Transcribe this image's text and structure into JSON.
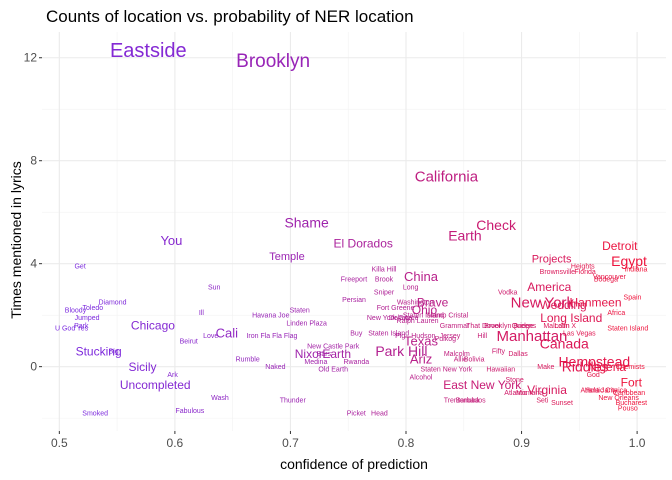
{
  "chart_data": {
    "type": "scatter",
    "title": "Counts of location vs. probability of NER location",
    "xlabel": "confidence of prediction",
    "ylabel": "Times mentioned in lyrics",
    "xlim": [
      0.485,
      1.025
    ],
    "ylim": [
      -2.5,
      13.0
    ],
    "x_ticks": [
      "0.5",
      "0.6",
      "0.7",
      "0.8",
      "0.9",
      "1.0"
    ],
    "y_ticks": [
      "0",
      "4",
      "8",
      "12"
    ],
    "grid": true,
    "legend": "none",
    "color_low": "#7b2be0",
    "color_high": "#f0143a",
    "points": [
      {
        "label": "Eastside",
        "x": 0.577,
        "y": 12.3,
        "size": 20
      },
      {
        "label": "Brooklyn",
        "x": 0.685,
        "y": 11.9,
        "size": 19
      },
      {
        "label": "California",
        "x": 0.835,
        "y": 7.4,
        "size": 15
      },
      {
        "label": "Shame",
        "x": 0.714,
        "y": 5.6,
        "size": 14
      },
      {
        "label": "Check",
        "x": 0.878,
        "y": 5.5,
        "size": 14
      },
      {
        "label": "Earth",
        "x": 0.851,
        "y": 5.1,
        "size": 14
      },
      {
        "label": "You",
        "x": 0.597,
        "y": 4.9,
        "size": 13
      },
      {
        "label": "El Dorados",
        "x": 0.763,
        "y": 4.8,
        "size": 12
      },
      {
        "label": "Detroit",
        "x": 0.985,
        "y": 4.7,
        "size": 12
      },
      {
        "label": "Temple",
        "x": 0.697,
        "y": 4.3,
        "size": 11
      },
      {
        "label": "Projects",
        "x": 0.926,
        "y": 4.2,
        "size": 11
      },
      {
        "label": "Egypt",
        "x": 0.993,
        "y": 4.1,
        "size": 14
      },
      {
        "label": "Get",
        "x": 0.518,
        "y": 3.9,
        "size": 7
      },
      {
        "label": "Killa Hill",
        "x": 0.781,
        "y": 3.8,
        "size": 7
      },
      {
        "label": "Heights",
        "x": 0.953,
        "y": 3.9,
        "size": 7
      },
      {
        "label": "Brownsville",
        "x": 0.931,
        "y": 3.7,
        "size": 7
      },
      {
        "label": "Florida",
        "x": 0.955,
        "y": 3.7,
        "size": 7
      },
      {
        "label": "Vancouver",
        "x": 0.976,
        "y": 3.5,
        "size": 7
      },
      {
        "label": "Bodega",
        "x": 0.973,
        "y": 3.4,
        "size": 7
      },
      {
        "label": "Indiana",
        "x": 0.999,
        "y": 3.8,
        "size": 7
      },
      {
        "label": "China",
        "x": 0.813,
        "y": 3.5,
        "size": 13
      },
      {
        "label": "Freeport",
        "x": 0.755,
        "y": 3.4,
        "size": 7
      },
      {
        "label": "Brook",
        "x": 0.781,
        "y": 3.4,
        "size": 7
      },
      {
        "label": "Sun",
        "x": 0.634,
        "y": 3.1,
        "size": 7
      },
      {
        "label": "Long",
        "x": 0.804,
        "y": 3.1,
        "size": 7
      },
      {
        "label": "Sniper",
        "x": 0.781,
        "y": 2.9,
        "size": 7
      },
      {
        "label": "America",
        "x": 0.924,
        "y": 3.1,
        "size": 12
      },
      {
        "label": "Vodka",
        "x": 0.888,
        "y": 2.9,
        "size": 7
      },
      {
        "label": "Diamond",
        "x": 0.546,
        "y": 2.5,
        "size": 7
      },
      {
        "label": "Persian",
        "x": 0.755,
        "y": 2.6,
        "size": 7
      },
      {
        "label": "Brave",
        "x": 0.823,
        "y": 2.5,
        "size": 12
      },
      {
        "label": "Washington",
        "x": 0.808,
        "y": 2.5,
        "size": 7
      },
      {
        "label": "New York",
        "x": 0.918,
        "y": 2.5,
        "size": 15
      },
      {
        "label": "Wedding",
        "x": 0.936,
        "y": 2.4,
        "size": 12
      },
      {
        "label": "Hanmeen",
        "x": 0.964,
        "y": 2.5,
        "size": 12
      },
      {
        "label": "Spain",
        "x": 0.996,
        "y": 2.7,
        "size": 7
      },
      {
        "label": "Toledo",
        "x": 0.529,
        "y": 2.3,
        "size": 7
      },
      {
        "label": "Bloody",
        "x": 0.514,
        "y": 2.2,
        "size": 7
      },
      {
        "label": "Jumped",
        "x": 0.524,
        "y": 1.9,
        "size": 7
      },
      {
        "label": "Ill",
        "x": 0.623,
        "y": 2.1,
        "size": 7
      },
      {
        "label": "Havana Joe",
        "x": 0.683,
        "y": 2.0,
        "size": 7
      },
      {
        "label": "Staten",
        "x": 0.708,
        "y": 2.2,
        "size": 7
      },
      {
        "label": "Fort Greene",
        "x": 0.791,
        "y": 2.3,
        "size": 7
      },
      {
        "label": "Ohio",
        "x": 0.816,
        "y": 2.2,
        "size": 12
      },
      {
        "label": "Staten Island",
        "x": 0.815,
        "y": 2.0,
        "size": 7
      },
      {
        "label": "Mamp Cristal",
        "x": 0.836,
        "y": 2.0,
        "size": 7
      },
      {
        "label": "New York City",
        "x": 0.785,
        "y": 1.9,
        "size": 7
      },
      {
        "label": "Delaware",
        "x": 0.798,
        "y": 1.9,
        "size": 7
      },
      {
        "label": "Ralph Lauren",
        "x": 0.81,
        "y": 1.8,
        "size": 7
      },
      {
        "label": "Long Island",
        "x": 0.943,
        "y": 1.9,
        "size": 12
      },
      {
        "label": "Africa",
        "x": 0.982,
        "y": 2.1,
        "size": 7
      },
      {
        "label": "Linden Plaza",
        "x": 0.714,
        "y": 1.7,
        "size": 7
      },
      {
        "label": "Grammar",
        "x": 0.842,
        "y": 1.6,
        "size": 7
      },
      {
        "label": "That Dover",
        "x": 0.867,
        "y": 1.6,
        "size": 7
      },
      {
        "label": "Brooklyn Bridge",
        "x": 0.889,
        "y": 1.6,
        "size": 7
      },
      {
        "label": "Queens",
        "x": 0.902,
        "y": 1.6,
        "size": 7
      },
      {
        "label": "Malcolm X",
        "x": 0.933,
        "y": 1.6,
        "size": 7
      },
      {
        "label": "Latin",
        "x": 0.935,
        "y": 1.6,
        "size": 7
      },
      {
        "label": "Staten Island",
        "x": 0.992,
        "y": 1.5,
        "size": 7
      },
      {
        "label": "U God",
        "x": 0.505,
        "y": 1.5,
        "size": 7
      },
      {
        "label": "Yes",
        "x": 0.52,
        "y": 1.5,
        "size": 7
      },
      {
        "label": "Chicago",
        "x": 0.581,
        "y": 1.6,
        "size": 12
      },
      {
        "label": "Park",
        "x": 0.519,
        "y": 1.6,
        "size": 7
      },
      {
        "label": "Cali",
        "x": 0.645,
        "y": 1.3,
        "size": 13
      },
      {
        "label": "Love",
        "x": 0.631,
        "y": 1.2,
        "size": 7
      },
      {
        "label": "Buy",
        "x": 0.757,
        "y": 1.3,
        "size": 7
      },
      {
        "label": "Staten Island",
        "x": 0.785,
        "y": 1.3,
        "size": 7
      },
      {
        "label": "Pig",
        "x": 0.795,
        "y": 1.2,
        "size": 7
      },
      {
        "label": "Hudson",
        "x": 0.815,
        "y": 1.2,
        "size": 7
      },
      {
        "label": "Pulkog",
        "x": 0.834,
        "y": 1.1,
        "size": 7
      },
      {
        "label": "Jersey",
        "x": 0.838,
        "y": 1.2,
        "size": 7
      },
      {
        "label": "Hill",
        "x": 0.866,
        "y": 1.2,
        "size": 7
      },
      {
        "label": "Manhattan",
        "x": 0.909,
        "y": 1.2,
        "size": 15
      },
      {
        "label": "Las Vegas",
        "x": 0.95,
        "y": 1.3,
        "size": 7
      },
      {
        "label": "Beirut",
        "x": 0.612,
        "y": 1.0,
        "size": 7
      },
      {
        "label": "Iron Fla Fla Flag",
        "x": 0.684,
        "y": 1.2,
        "size": 7
      },
      {
        "label": "New Castle Park",
        "x": 0.737,
        "y": 0.8,
        "size": 7
      },
      {
        "label": "Texas",
        "x": 0.813,
        "y": 1.0,
        "size": 13
      },
      {
        "label": "Canada",
        "x": 0.937,
        "y": 0.9,
        "size": 14
      },
      {
        "label": "Stucking",
        "x": 0.534,
        "y": 0.6,
        "size": 12
      },
      {
        "label": "Big",
        "x": 0.547,
        "y": 0.6,
        "size": 7
      },
      {
        "label": "Rumble",
        "x": 0.663,
        "y": 0.3,
        "size": 7
      },
      {
        "label": "Nixon",
        "x": 0.717,
        "y": 0.5,
        "size": 12
      },
      {
        "label": "Bars",
        "x": 0.729,
        "y": 0.5,
        "size": 7
      },
      {
        "label": "Earth",
        "x": 0.74,
        "y": 0.5,
        "size": 12
      },
      {
        "label": "Park Hill",
        "x": 0.796,
        "y": 0.6,
        "size": 14
      },
      {
        "label": "Fifty",
        "x": 0.88,
        "y": 0.6,
        "size": 7
      },
      {
        "label": "Dallas",
        "x": 0.897,
        "y": 0.5,
        "size": 7
      },
      {
        "label": "Malcolm",
        "x": 0.844,
        "y": 0.5,
        "size": 7
      },
      {
        "label": "Allie",
        "x": 0.847,
        "y": 0.3,
        "size": 7
      },
      {
        "label": "Bolivia",
        "x": 0.859,
        "y": 0.3,
        "size": 7
      },
      {
        "label": "Medina",
        "x": 0.722,
        "y": 0.2,
        "size": 7
      },
      {
        "label": "Rwanda",
        "x": 0.757,
        "y": 0.2,
        "size": 7
      },
      {
        "label": "Ariz",
        "x": 0.813,
        "y": 0.3,
        "size": 13
      },
      {
        "label": "Sicily",
        "x": 0.572,
        "y": 0.0,
        "size": 12
      },
      {
        "label": "Naked",
        "x": 0.687,
        "y": 0.0,
        "size": 7
      },
      {
        "label": "Old Earth",
        "x": 0.737,
        "y": -0.1,
        "size": 7
      },
      {
        "label": "Staten New York",
        "x": 0.835,
        "y": -0.1,
        "size": 7
      },
      {
        "label": "Hawaiian",
        "x": 0.882,
        "y": -0.1,
        "size": 7
      },
      {
        "label": "Make",
        "x": 0.921,
        "y": 0.0,
        "size": 7
      },
      {
        "label": "Hempstead",
        "x": 0.963,
        "y": 0.2,
        "size": 14
      },
      {
        "label": "Riddles",
        "x": 0.955,
        "y": 0.0,
        "size": 14
      },
      {
        "label": "Nigeria",
        "x": 0.974,
        "y": 0.0,
        "size": 12
      },
      {
        "label": "Chemists",
        "x": 0.994,
        "y": 0.0,
        "size": 7
      },
      {
        "label": "Ark",
        "x": 0.598,
        "y": -0.3,
        "size": 7
      },
      {
        "label": "Alcohol",
        "x": 0.813,
        "y": -0.4,
        "size": 7
      },
      {
        "label": "God",
        "x": 0.962,
        "y": -0.3,
        "size": 7
      },
      {
        "label": "Uncompleted",
        "x": 0.583,
        "y": -0.7,
        "size": 12
      },
      {
        "label": "East New York",
        "x": 0.866,
        "y": -0.7,
        "size": 12
      },
      {
        "label": "Stone",
        "x": 0.894,
        "y": -0.5,
        "size": 7
      },
      {
        "label": "Fort",
        "x": 0.995,
        "y": -0.6,
        "size": 12
      },
      {
        "label": "Virginia",
        "x": 0.922,
        "y": -0.9,
        "size": 12
      },
      {
        "label": "Atlantic",
        "x": 0.895,
        "y": -1.0,
        "size": 7
      },
      {
        "label": "Montana",
        "x": 0.907,
        "y": -1.0,
        "size": 7
      },
      {
        "label": "Atlantic City",
        "x": 0.967,
        "y": -0.9,
        "size": 7
      },
      {
        "label": "Hola",
        "x": 0.961,
        "y": -0.9,
        "size": 7
      },
      {
        "label": "Jamaica",
        "x": 0.98,
        "y": -0.9,
        "size": 7
      },
      {
        "label": "Caribbean",
        "x": 0.993,
        "y": -1.0,
        "size": 7
      },
      {
        "label": "Wash",
        "x": 0.639,
        "y": -1.2,
        "size": 7
      },
      {
        "label": "Thunder",
        "x": 0.702,
        "y": -1.3,
        "size": 7
      },
      {
        "label": "Trentonuba",
        "x": 0.848,
        "y": -1.3,
        "size": 7
      },
      {
        "label": "Barbados",
        "x": 0.856,
        "y": -1.3,
        "size": 7
      },
      {
        "label": "Seti",
        "x": 0.918,
        "y": -1.3,
        "size": 7
      },
      {
        "label": "Sunset",
        "x": 0.935,
        "y": -1.4,
        "size": 7
      },
      {
        "label": "New Orleans",
        "x": 0.984,
        "y": -1.2,
        "size": 7
      },
      {
        "label": "Bucharest",
        "x": 0.995,
        "y": -1.4,
        "size": 7
      },
      {
        "label": "Pouso",
        "x": 0.992,
        "y": -1.6,
        "size": 7
      },
      {
        "label": "Smoked",
        "x": 0.531,
        "y": -1.8,
        "size": 7
      },
      {
        "label": "Fabulous",
        "x": 0.613,
        "y": -1.7,
        "size": 7
      },
      {
        "label": "Picket",
        "x": 0.757,
        "y": -1.8,
        "size": 7
      },
      {
        "label": "Head",
        "x": 0.777,
        "y": -1.8,
        "size": 7
      }
    ]
  }
}
